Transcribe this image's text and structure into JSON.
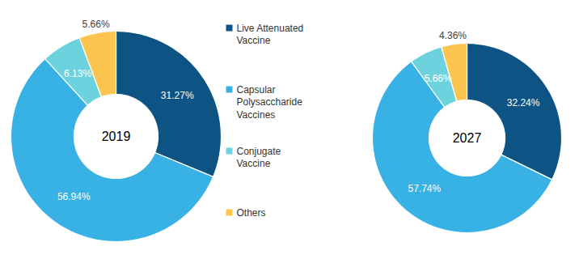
{
  "chart_data": [
    {
      "type": "pie",
      "title": "2019",
      "categories": [
        "Live Attenuated Vaccine",
        "Capsular Polysaccharide Vaccines",
        "Conjugate Vaccine",
        "Others"
      ],
      "values": [
        31.27,
        56.94,
        6.13,
        5.66
      ],
      "value_labels": [
        "31.27%",
        "56.94%",
        "6.13%",
        "5.66%"
      ],
      "colors": [
        "#0d5384",
        "#38b1e4",
        "#6cd3de",
        "#fdc54f"
      ],
      "data_labels": true,
      "legend": "right"
    },
    {
      "type": "pie",
      "title": "2027",
      "categories": [
        "Live Attenuated Vaccine",
        "Capsular Polysaccharide Vaccines",
        "Conjugate Vaccine",
        "Others"
      ],
      "values": [
        32.24,
        57.74,
        5.66,
        4.36
      ],
      "value_labels": [
        "32.24%",
        "57.74%",
        "5.66%",
        "4.36%"
      ],
      "colors": [
        "#0d5384",
        "#38b1e4",
        "#6cd3de",
        "#fdc54f"
      ],
      "data_labels": true
    }
  ]
}
